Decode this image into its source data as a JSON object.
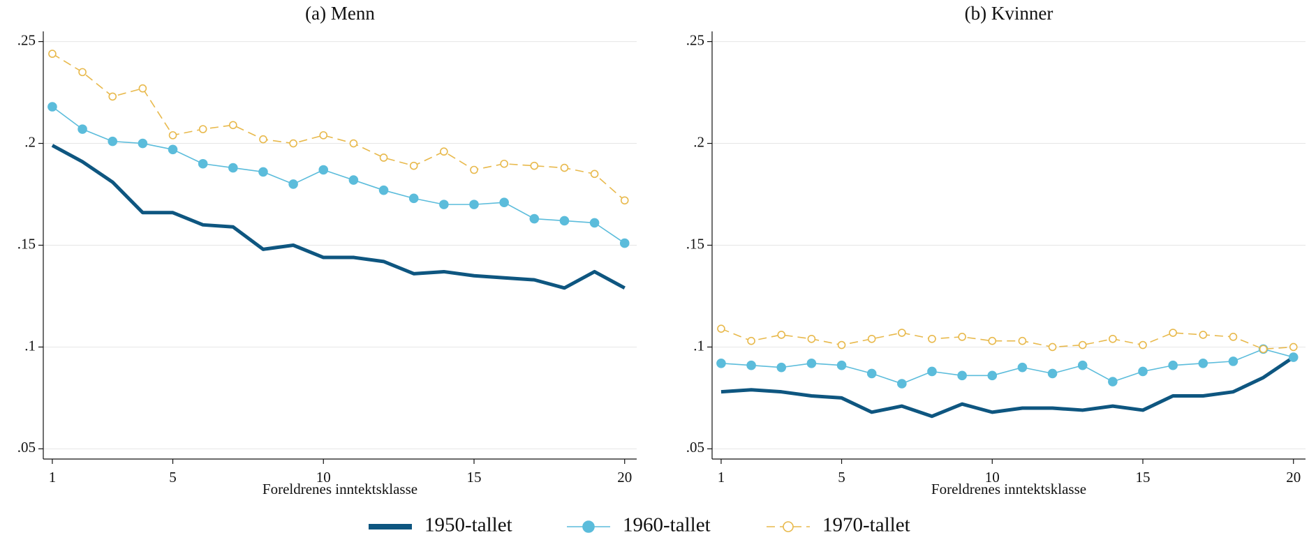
{
  "chart_data": [
    {
      "type": "line",
      "title": "(a) Menn",
      "xlabel": "Foreldrenes inntektsklasse",
      "x": [
        1,
        2,
        3,
        4,
        5,
        6,
        7,
        8,
        9,
        10,
        11,
        12,
        13,
        14,
        15,
        16,
        17,
        18,
        19,
        20
      ],
      "xlim": [
        0.7,
        20.4
      ],
      "xticks": [
        1,
        5,
        10,
        15,
        20
      ],
      "ylim": [
        0.045,
        0.255
      ],
      "yticks": [
        {
          "value": 0.05,
          "label": ".05"
        },
        {
          "value": 0.1,
          "label": ".1"
        },
        {
          "value": 0.15,
          "label": ".15"
        },
        {
          "value": 0.2,
          "label": ".2"
        },
        {
          "value": 0.25,
          "label": ".25"
        }
      ],
      "grid": true,
      "legend": "bottom",
      "series": [
        {
          "name": "1950-tallet",
          "color": "#0e5680",
          "marker": "none",
          "dashed": false,
          "values": [
            0.199,
            0.191,
            0.181,
            0.166,
            0.166,
            0.16,
            0.159,
            0.148,
            0.15,
            0.144,
            0.144,
            0.142,
            0.136,
            0.137,
            0.135,
            0.134,
            0.133,
            0.129,
            0.137,
            0.129
          ]
        },
        {
          "name": "1960-tallet",
          "color": "#5bbcdb",
          "marker": "filled",
          "dashed": false,
          "values": [
            0.218,
            0.207,
            0.201,
            0.2,
            0.197,
            0.19,
            0.188,
            0.186,
            0.18,
            0.187,
            0.182,
            0.177,
            0.173,
            0.17,
            0.17,
            0.171,
            0.163,
            0.162,
            0.161,
            0.151
          ]
        },
        {
          "name": "1970-tallet",
          "color": "#e8b94c",
          "marker": "hollow",
          "dashed": true,
          "values": [
            0.244,
            0.235,
            0.223,
            0.227,
            0.204,
            0.207,
            0.209,
            0.202,
            0.2,
            0.204,
            0.2,
            0.193,
            0.189,
            0.196,
            0.187,
            0.19,
            0.189,
            0.188,
            0.185,
            0.172
          ]
        }
      ]
    },
    {
      "type": "line",
      "title": "(b) Kvinner",
      "xlabel": "Foreldrenes inntektsklasse",
      "x": [
        1,
        2,
        3,
        4,
        5,
        6,
        7,
        8,
        9,
        10,
        11,
        12,
        13,
        14,
        15,
        16,
        17,
        18,
        19,
        20
      ],
      "xlim": [
        0.7,
        20.4
      ],
      "xticks": [
        1,
        5,
        10,
        15,
        20
      ],
      "ylim": [
        0.045,
        0.255
      ],
      "yticks": [
        {
          "value": 0.05,
          "label": ".05"
        },
        {
          "value": 0.1,
          "label": ".1"
        },
        {
          "value": 0.15,
          "label": ".15"
        },
        {
          "value": 0.2,
          "label": ".2"
        },
        {
          "value": 0.25,
          "label": ".25"
        }
      ],
      "grid": true,
      "series": [
        {
          "name": "1950-tallet",
          "color": "#0e5680",
          "marker": "none",
          "dashed": false,
          "values": [
            0.078,
            0.079,
            0.078,
            0.076,
            0.075,
            0.068,
            0.071,
            0.066,
            0.072,
            0.068,
            0.07,
            0.07,
            0.069,
            0.071,
            0.069,
            0.076,
            0.076,
            0.078,
            0.085,
            0.095
          ]
        },
        {
          "name": "1960-tallet",
          "color": "#5bbcdb",
          "marker": "filled",
          "dashed": false,
          "values": [
            0.092,
            0.091,
            0.09,
            0.092,
            0.091,
            0.087,
            0.082,
            0.088,
            0.086,
            0.086,
            0.09,
            0.087,
            0.091,
            0.083,
            0.088,
            0.091,
            0.092,
            0.093,
            0.099,
            0.095
          ]
        },
        {
          "name": "1970-tallet",
          "color": "#e8b94c",
          "marker": "hollow",
          "dashed": true,
          "values": [
            0.109,
            0.103,
            0.106,
            0.104,
            0.101,
            0.104,
            0.107,
            0.104,
            0.105,
            0.103,
            0.103,
            0.1,
            0.101,
            0.104,
            0.101,
            0.107,
            0.106,
            0.105,
            0.099,
            0.1
          ]
        }
      ]
    }
  ]
}
